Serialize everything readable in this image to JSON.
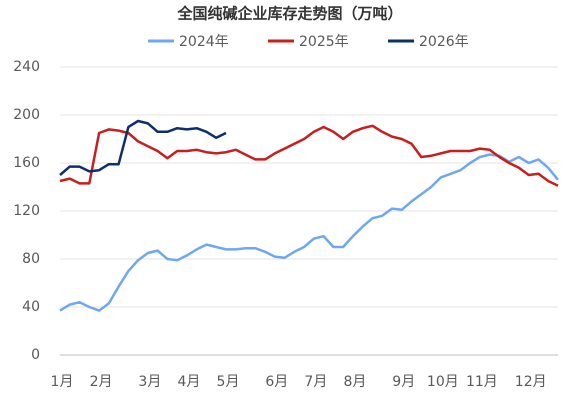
{
  "chart_data": {
    "type": "line",
    "title": "全国纯碱企业库存走势图（万吨）",
    "categories": [
      "1月",
      null,
      null,
      null,
      "2月",
      null,
      null,
      null,
      null,
      "3月",
      null,
      null,
      null,
      "4月",
      null,
      null,
      null,
      "5月",
      null,
      null,
      null,
      null,
      "6月",
      null,
      null,
      null,
      "7月",
      null,
      null,
      null,
      "8月",
      null,
      null,
      null,
      null,
      "9月",
      null,
      null,
      null,
      "10月",
      null,
      null,
      null,
      "11月",
      null,
      null,
      null,
      null,
      "12月",
      null,
      null,
      null
    ],
    "series": [
      {
        "name": "2024年",
        "color": "#6fa8f0",
        "values": [
          37,
          42,
          44,
          40,
          37,
          43,
          57,
          70,
          79,
          85,
          87,
          80,
          79,
          83,
          88,
          92,
          90,
          88,
          88,
          89,
          89,
          86,
          82,
          81,
          86,
          90,
          97,
          99,
          90,
          90,
          99,
          107,
          114,
          116,
          122,
          121,
          128,
          134,
          140,
          148,
          151,
          154,
          160,
          165,
          167,
          166,
          161,
          165,
          160,
          163,
          156,
          146
        ]
      },
      {
        "name": "2025年",
        "color": "#c81e1e",
        "values": [
          145,
          147,
          143,
          143,
          185,
          188,
          187,
          185,
          178,
          174,
          170,
          164,
          170,
          170,
          171,
          169,
          168,
          169,
          171,
          167,
          163,
          163,
          168,
          172,
          176,
          180,
          186,
          190,
          186,
          180,
          186,
          189,
          191,
          186,
          182,
          180,
          176,
          165,
          166,
          168,
          170,
          170,
          170,
          172,
          171,
          165,
          160,
          156,
          150,
          151,
          145,
          141
        ]
      },
      {
        "name": "2026年",
        "color": "#0e2f6e",
        "values": [
          150,
          157,
          157,
          153,
          154,
          159,
          159,
          190,
          195,
          193,
          186,
          186,
          189,
          188,
          189,
          186,
          181,
          185,
          null,
          null,
          null,
          null,
          null,
          null,
          null,
          null,
          null,
          null,
          null,
          null,
          null,
          null,
          null,
          null,
          null,
          null,
          null,
          null,
          null,
          null,
          null,
          null,
          null,
          null,
          null,
          null,
          null,
          null,
          null,
          null,
          null,
          null
        ]
      }
    ],
    "ylim": [
      0,
      240
    ],
    "yticks": [
      0,
      40,
      80,
      120,
      160,
      200,
      240
    ],
    "grid": true
  }
}
